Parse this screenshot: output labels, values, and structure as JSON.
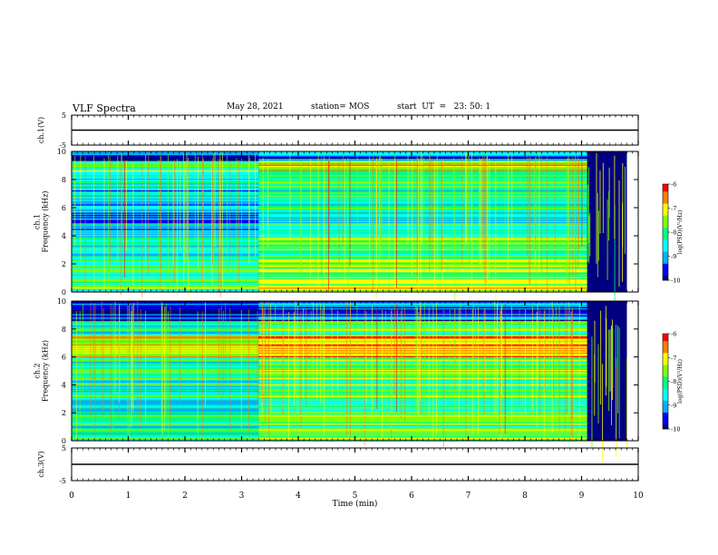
{
  "header": {
    "title": "VLF Spectra",
    "date": "May 28, 2021",
    "station": "station= MOS",
    "start": "start  UT  =   23: 50: 1"
  },
  "colors": {
    "colormap": [
      "#000080",
      "#0000ff",
      "#00b0ff",
      "#00ffff",
      "#00ff80",
      "#80ff00",
      "#ffff00",
      "#ff8000",
      "#ff0000",
      "#ffffff"
    ],
    "trace": "#000000",
    "gap": "#000080"
  },
  "chart_data": [
    {
      "type": "line",
      "name": "ch1-waveform",
      "ylabel": "ch.1(V)",
      "ylim": [
        -5,
        5
      ],
      "yticks": [
        5,
        -5
      ],
      "x": [
        0,
        10
      ],
      "y": [
        0,
        0
      ]
    },
    {
      "type": "heatmap",
      "name": "ch1-spectrogram",
      "ylabel": "ch.1\nFrequency (kHz)",
      "ylim": [
        0,
        10
      ],
      "yticks": [
        0,
        2,
        4,
        6,
        8,
        10
      ],
      "xlim": [
        0,
        10
      ],
      "data_end_min": 9.8,
      "gap_start_min": 9.1,
      "colorbar": {
        "label": "log(PSD)(V²/Hz)",
        "range": [
          -10,
          -6
        ],
        "ticks": [
          -6,
          -7,
          -8,
          -9,
          -10
        ]
      },
      "bands_khz": [
        {
          "from": 0,
          "to": 0.6,
          "level": -8.0
        },
        {
          "from": 0.6,
          "to": 2.2,
          "level": -8.1
        },
        {
          "from": 2.2,
          "to": 4.2,
          "level": -8.4
        },
        {
          "from": 4.2,
          "to": 6.5,
          "level": -8.9
        },
        {
          "from": 6.5,
          "to": 8.5,
          "level": -8.7
        },
        {
          "from": 8.5,
          "to": 9.3,
          "level": -7.9
        },
        {
          "from": 9.3,
          "to": 10,
          "level": -9.7
        }
      ],
      "active_interval_min": [
        3.3,
        9.1
      ],
      "active_boost": 0.6
    },
    {
      "type": "heatmap",
      "name": "ch2-spectrogram",
      "ylabel": "ch.2\nFrequency (kHz)",
      "ylim": [
        0,
        10
      ],
      "yticks": [
        0,
        2,
        4,
        6,
        8,
        10
      ],
      "xlim": [
        0,
        10
      ],
      "data_end_min": 9.8,
      "gap_start_min": 9.1,
      "colorbar": {
        "label": "log(PSD)(V²/Hz)",
        "range": [
          -10,
          -6
        ],
        "ticks": [
          -6,
          -7,
          -8,
          -9,
          -10
        ]
      },
      "bands_khz": [
        {
          "from": 0,
          "to": 0.6,
          "level": -8.1
        },
        {
          "from": 0.6,
          "to": 2.5,
          "level": -8.2
        },
        {
          "from": 2.5,
          "to": 4.5,
          "level": -8.3
        },
        {
          "from": 4.5,
          "to": 6.0,
          "level": -8.1
        },
        {
          "from": 6.0,
          "to": 7.5,
          "level": -7.2
        },
        {
          "from": 7.5,
          "to": 8.6,
          "level": -8.4
        },
        {
          "from": 8.6,
          "to": 10,
          "level": -9.7
        }
      ],
      "active_interval_min": [
        3.3,
        9.1
      ],
      "active_boost": 0.5
    },
    {
      "type": "line",
      "name": "ch3-waveform",
      "ylabel": "ch.3(V)",
      "ylim": [
        -5,
        5
      ],
      "yticks": [
        5,
        -5
      ],
      "x": [
        0,
        10
      ],
      "y": [
        0,
        0
      ]
    }
  ],
  "xaxis": {
    "label": "Time (min)",
    "range": [
      0,
      10
    ],
    "ticks": [
      0,
      1,
      2,
      3,
      4,
      5,
      6,
      7,
      8,
      9,
      10
    ]
  }
}
